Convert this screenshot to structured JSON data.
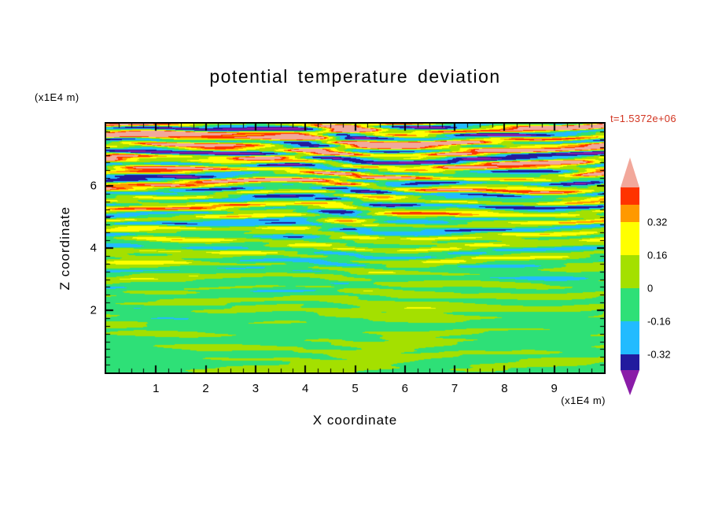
{
  "title": "potential temperature deviation",
  "timestamp": {
    "text": "t=1.5372e+06",
    "color": "#d23420"
  },
  "axes": {
    "x": {
      "label": "X coordinate",
      "unit": "(x1E4 m)",
      "range": [
        0,
        10
      ],
      "tick_values": [
        1,
        2,
        3,
        4,
        5,
        6,
        7,
        8,
        9
      ],
      "tick_labels": [
        "1",
        "2",
        "3",
        "4",
        "5",
        "6",
        "7",
        "8",
        "9"
      ],
      "minor_step": 0.25
    },
    "y": {
      "label": "Z coordinate",
      "unit": "(x1E4 m)",
      "range": [
        0,
        8
      ],
      "tick_values": [
        2,
        4,
        6
      ],
      "tick_labels": [
        "2",
        "4",
        "6"
      ],
      "minor_step": 0.25
    }
  },
  "colorbar": {
    "arrow_top": {
      "name": "pink",
      "color": "#F2A89B"
    },
    "segments_top_to_bottom": [
      {
        "name": "red",
        "color": "#FF3300"
      },
      {
        "name": "orange",
        "color": "#FF9900"
      },
      {
        "name": "yellow",
        "color": "#FFFF00"
      },
      {
        "name": "yellow-green",
        "color": "#A4E000"
      },
      {
        "name": "spring-green",
        "color": "#2EE077"
      },
      {
        "name": "cyan",
        "color": "#22BBFF"
      },
      {
        "name": "dark-blue",
        "color": "#221B9E"
      }
    ],
    "arrow_bottom": {
      "name": "purple",
      "color": "#8A1CA8"
    },
    "tick_labels": [
      "0.32",
      "0.16",
      "0",
      "-0.16",
      "-0.32"
    ],
    "tick_after_segment_index": [
      1,
      2,
      3,
      4,
      5
    ]
  },
  "chart_data": {
    "type": "heatmap",
    "title": "potential temperature deviation",
    "xlabel": "X coordinate (x1E4 m)",
    "ylabel": "Z coordinate (x1E4 m)",
    "x_range": [
      0,
      10
    ],
    "y_range": [
      0,
      8
    ],
    "x_ticks": [
      1,
      2,
      3,
      4,
      5,
      6,
      7,
      8,
      9
    ],
    "y_ticks": [
      2,
      4,
      6
    ],
    "time_label": "t=1.5372e+06",
    "contour_levels": [
      -0.48,
      -0.32,
      -0.16,
      0,
      0.16,
      0.32,
      0.4,
      0.48
    ],
    "bin_colors_low_to_high": [
      "#8A1CA8",
      "#221B9E",
      "#22BBFF",
      "#2EE077",
      "#A4E000",
      "#FFFF00",
      "#FF9900",
      "#FF3300",
      "#F2A89B"
    ],
    "labeled_levels": [
      -0.32,
      -0.16,
      0,
      0.16,
      0.32
    ],
    "value_range_approx": [
      -0.7,
      0.9
    ],
    "field_description": "Horizontally striated turbulence field: deviation amplitude grows with height. Below z=2 the field is near zero (spring-green with yellow-green blobs); between z=2 and z=4 thin green/yellow-green/yellow stripes with occasional cyan; above z=4 strong alternating horizontal bands of yellow/orange/red/pink and cyan/dark-blue/purple; near the top boundary a predominantly pink (strongly positive) cap with dark-blue streaks."
  }
}
